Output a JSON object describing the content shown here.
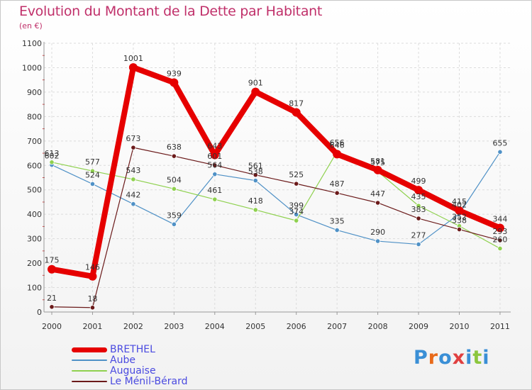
{
  "title": "Evolution du Montant de la Dette par Habitant",
  "subtitle": "(en €)",
  "logo": {
    "text": "Proxiti",
    "letter_colors": [
      "#3a8fd6",
      "#e86a1a",
      "#3a8fd6",
      "#e04040",
      "#3a8fd6",
      "#8cc63e",
      "#3a8fd6"
    ]
  },
  "chart_data": {
    "type": "line",
    "title": "Evolution du Montant de la Dette par Habitant",
    "subtitle": "(en €)",
    "x": [
      "2000",
      "2001",
      "2002",
      "2003",
      "2004",
      "2005",
      "2006",
      "2007",
      "2008",
      "2009",
      "2010",
      "2011"
    ],
    "ylim": [
      0,
      1100
    ],
    "yticks": [
      0,
      100,
      200,
      300,
      400,
      500,
      600,
      700,
      800,
      900,
      1000,
      1100
    ],
    "grid": true,
    "legend_position": "bottom-left",
    "series": [
      {
        "name": "BRETHEL",
        "color": "#e60000",
        "width": 8,
        "marker": 6,
        "values": [
          175,
          146,
          1001,
          939,
          643,
          901,
          817,
          646,
          581,
          499,
          415,
          344
        ],
        "labels": [
          "175",
          "146",
          "1001",
          "939",
          "643",
          "901",
          "817",
          "646",
          "581",
          "499",
          "415",
          "344"
        ]
      },
      {
        "name": "Aube",
        "color": "#4f91c6",
        "width": 1.2,
        "marker": 3.2,
        "values": [
          602,
          524,
          442,
          359,
          564,
          538,
          399,
          335,
          290,
          277,
          402,
          655
        ],
        "labels": [
          "602",
          "524",
          "442",
          "359",
          "564",
          "538",
          "399",
          "335",
          "290",
          "277",
          "402",
          "655"
        ]
      },
      {
        "name": "Auguaise",
        "color": "#8fd14f",
        "width": 1.2,
        "marker": 3.2,
        "values": [
          613,
          577,
          543,
          504,
          461,
          418,
          374,
          656,
          575,
          435,
          352,
          260
        ],
        "labels": [
          "613",
          "577",
          "543",
          "504",
          "461",
          "418",
          "374",
          "656",
          "575",
          "435",
          "352",
          "260"
        ]
      },
      {
        "name": "Le Ménil-Bérard",
        "color": "#6b1a1a",
        "width": 1.2,
        "marker": 3.2,
        "values": [
          21,
          18,
          673,
          638,
          601,
          561,
          525,
          487,
          447,
          383,
          338,
          293
        ],
        "labels": [
          "21",
          "18",
          "673",
          "638",
          "601",
          "561",
          "525",
          "487",
          "447",
          "383",
          "338",
          "293"
        ]
      }
    ]
  }
}
